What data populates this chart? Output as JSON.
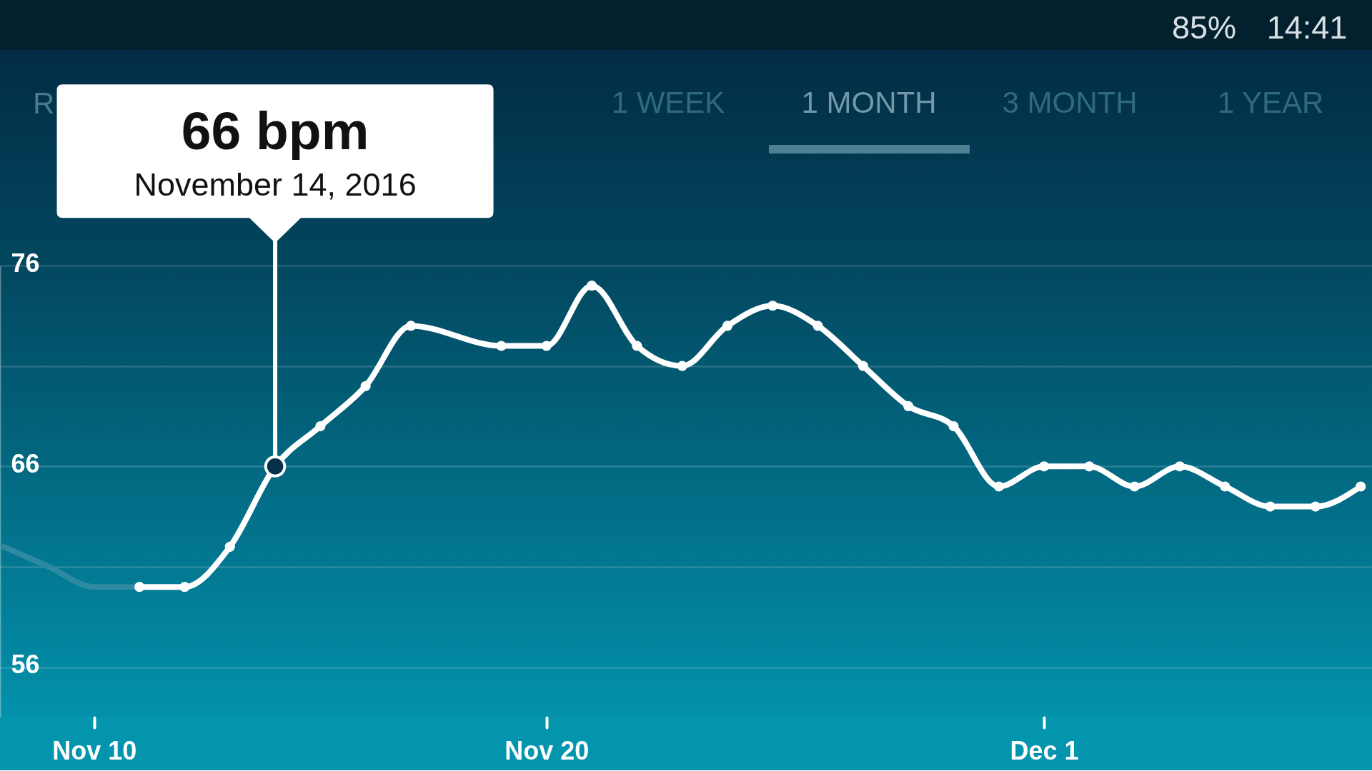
{
  "chart_data": {
    "type": "line",
    "annotations": [
      {
        "text": "66 bpm",
        "x": "2016-11-14",
        "y": 66
      },
      {
        "text": "November 14, 2016",
        "x": "2016-11-14",
        "y": 66
      },
      "R",
      "1 WEEK",
      "1 MONTH",
      "3 MONTH",
      "1 YEAR",
      "85%",
      "14:41"
    ],
    "series": [
      {
        "color": "#2e8aa0",
        "marker": "none",
        "x": [
          "2016-11-08",
          "2016-11-09",
          "2016-11-10",
          "2016-11-11"
        ],
        "values": [
          62,
          61,
          60,
          60
        ]
      },
      {
        "color": "#ffffff",
        "x": [
          "2016-11-11",
          "2016-11-12",
          "2016-11-13",
          "2016-11-14",
          "2016-11-15",
          "2016-11-16",
          "2016-11-17",
          "2016-11-19",
          "2016-11-20",
          "2016-11-21",
          "2016-11-22",
          "2016-11-23",
          "2016-11-24",
          "2016-11-25",
          "2016-11-26",
          "2016-11-27",
          "2016-11-28",
          "2016-11-29",
          "2016-11-30",
          "2016-12-01",
          "2016-12-02",
          "2016-12-03",
          "2016-12-04",
          "2016-12-05",
          "2016-12-06",
          "2016-12-07",
          "2016-12-08"
        ],
        "values": [
          60,
          60,
          62,
          66,
          68,
          70,
          73,
          72,
          72,
          75,
          72,
          71,
          73,
          74,
          73,
          71,
          69,
          68,
          65,
          66,
          66,
          65,
          66,
          65,
          64,
          64,
          65
        ]
      }
    ],
    "xlim": [
      "2016-11-07T22:00",
      "2016-12-08T06:00"
    ],
    "xticks": [
      {
        "value": "2016-11-10",
        "label": "Nov 10"
      },
      {
        "value": "2016-11-20",
        "label": "Nov 20"
      },
      {
        "value": "2016-12-01",
        "label": "Dec 1"
      }
    ],
    "ylim": [
      53.5,
      76
    ],
    "yticks": [
      56,
      {
        "value": 61,
        "label": null
      },
      66,
      {
        "value": 71,
        "label": null
      },
      76
    ],
    "grid": "y",
    "marker": "circle",
    "line_style": "solid"
  }
}
